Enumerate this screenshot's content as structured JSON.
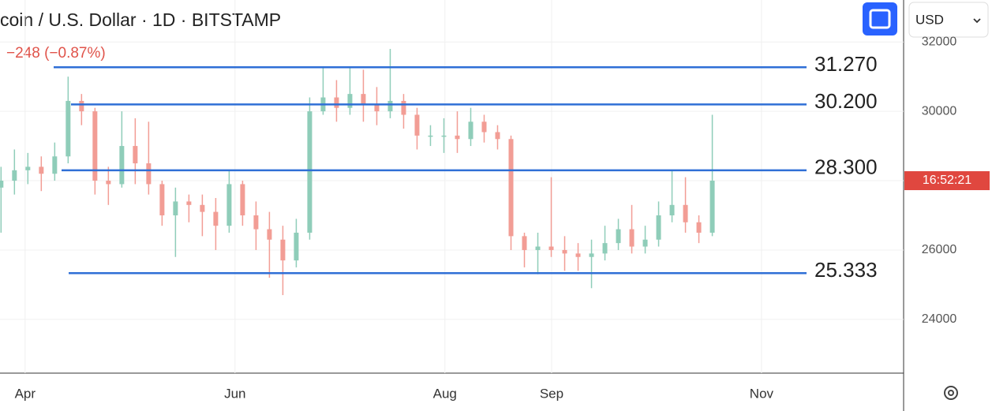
{
  "chart_data": {
    "type": "candlestick",
    "title": "coin / U.S. Dollar · 1D · BITSTAMP",
    "subtitle": "−248 (−0.87%)",
    "currency": "USD",
    "price_tag": "16:52:21",
    "x": [
      -7,
      -3.1,
      0.8,
      4.7,
      8.6,
      12.5,
      16.4,
      20.3,
      24.2,
      28.1,
      32,
      35.9,
      39.8,
      43.7,
      47.6,
      51.5,
      55.4,
      59.3,
      63.2,
      67.1,
      71,
      74.9,
      78.8,
      82.7,
      86.6,
      90.5,
      94.4,
      98.3,
      102.2,
      106.1,
      110,
      113.9,
      117.8,
      121.7,
      125.6,
      129.5,
      133.4,
      137.3,
      141.2,
      145.1,
      149,
      152.9,
      156.8,
      160.7,
      164.6,
      168.5,
      172.4,
      176.3,
      180.2,
      184.1,
      188,
      191.9,
      195.8,
      199.7
    ],
    "open": [
      27800,
      28000,
      28300,
      28400,
      28200,
      28700,
      30300,
      30000,
      28000,
      27900,
      29000,
      28500,
      27900,
      27000,
      27400,
      27300,
      27100,
      26700,
      27900,
      27000,
      26600,
      26300,
      25700,
      26500,
      30000,
      30400,
      30100,
      30500,
      30200,
      30000,
      30300,
      29900,
      29300,
      29300,
      29300,
      29200,
      29700,
      29400,
      29200,
      26400,
      26000,
      26100,
      26000,
      25900,
      25800,
      25900,
      26200,
      26600,
      26100,
      26300,
      27000,
      27300,
      26800,
      26500
    ],
    "high": [
      28400,
      28900,
      28800,
      28700,
      29100,
      31000,
      30500,
      30100,
      28400,
      30000,
      29800,
      29700,
      28000,
      27800,
      27600,
      27600,
      27500,
      28300,
      28000,
      27400,
      27100,
      26700,
      26900,
      30400,
      31300,
      30900,
      31300,
      31200,
      30700,
      31800,
      30500,
      30100,
      29600,
      29800,
      30000,
      30100,
      29900,
      29600,
      29300,
      26500,
      26500,
      28100,
      26400,
      26200,
      26300,
      26700,
      26900,
      27300,
      26700,
      27400,
      28300,
      28100,
      27000,
      29900
    ],
    "low": [
      26500,
      27600,
      27900,
      27700,
      28000,
      28500,
      29600,
      27600,
      27300,
      27800,
      27900,
      27600,
      26700,
      25800,
      26800,
      26400,
      26000,
      26500,
      26700,
      26000,
      25200,
      24700,
      25500,
      26300,
      29900,
      29700,
      29900,
      29700,
      29600,
      29800,
      29500,
      28900,
      29000,
      28800,
      28800,
      29000,
      29100,
      28900,
      26000,
      25500,
      25300,
      25800,
      25400,
      25400,
      24900,
      25700,
      26000,
      25900,
      25900,
      26100,
      26800,
      26500,
      26200,
      26400
    ],
    "close": [
      28000,
      28300,
      28400,
      28200,
      28700,
      30300,
      30000,
      28000,
      27900,
      29000,
      28500,
      27900,
      27000,
      27400,
      27300,
      27100,
      26700,
      27900,
      27000,
      26600,
      26300,
      25700,
      26500,
      30000,
      30400,
      30100,
      30500,
      30200,
      30000,
      30300,
      29900,
      29300,
      29300,
      29300,
      29200,
      29700,
      29400,
      29200,
      26400,
      26000,
      26100,
      26000,
      25900,
      25800,
      25900,
      26200,
      26600,
      26100,
      26300,
      27000,
      27300,
      26800,
      26500,
      28000
    ],
    "up_color": "#8fcdb9",
    "down_color": "#f29d95",
    "xlim": [
      -7.3,
      255.3
    ],
    "xticks": [
      {
        "value": 0,
        "label": "Apr"
      },
      {
        "value": 61,
        "label": "Jun"
      },
      {
        "value": 122,
        "label": "Aug"
      },
      {
        "value": 153,
        "label": "Sep"
      },
      {
        "value": 214,
        "label": "Nov"
      }
    ],
    "ylim": [
      22450,
      33210
    ],
    "yticks": [
      24000,
      26000,
      28000,
      30000,
      32000
    ],
    "grid": true,
    "levels": [
      {
        "value": 31270,
        "label": "31.270"
      },
      {
        "value": 30200,
        "label": "30.200"
      },
      {
        "value": 28300,
        "label": "28.300"
      },
      {
        "value": 25333,
        "label": "25.333"
      }
    ],
    "level_color": "#2f6fd6"
  }
}
